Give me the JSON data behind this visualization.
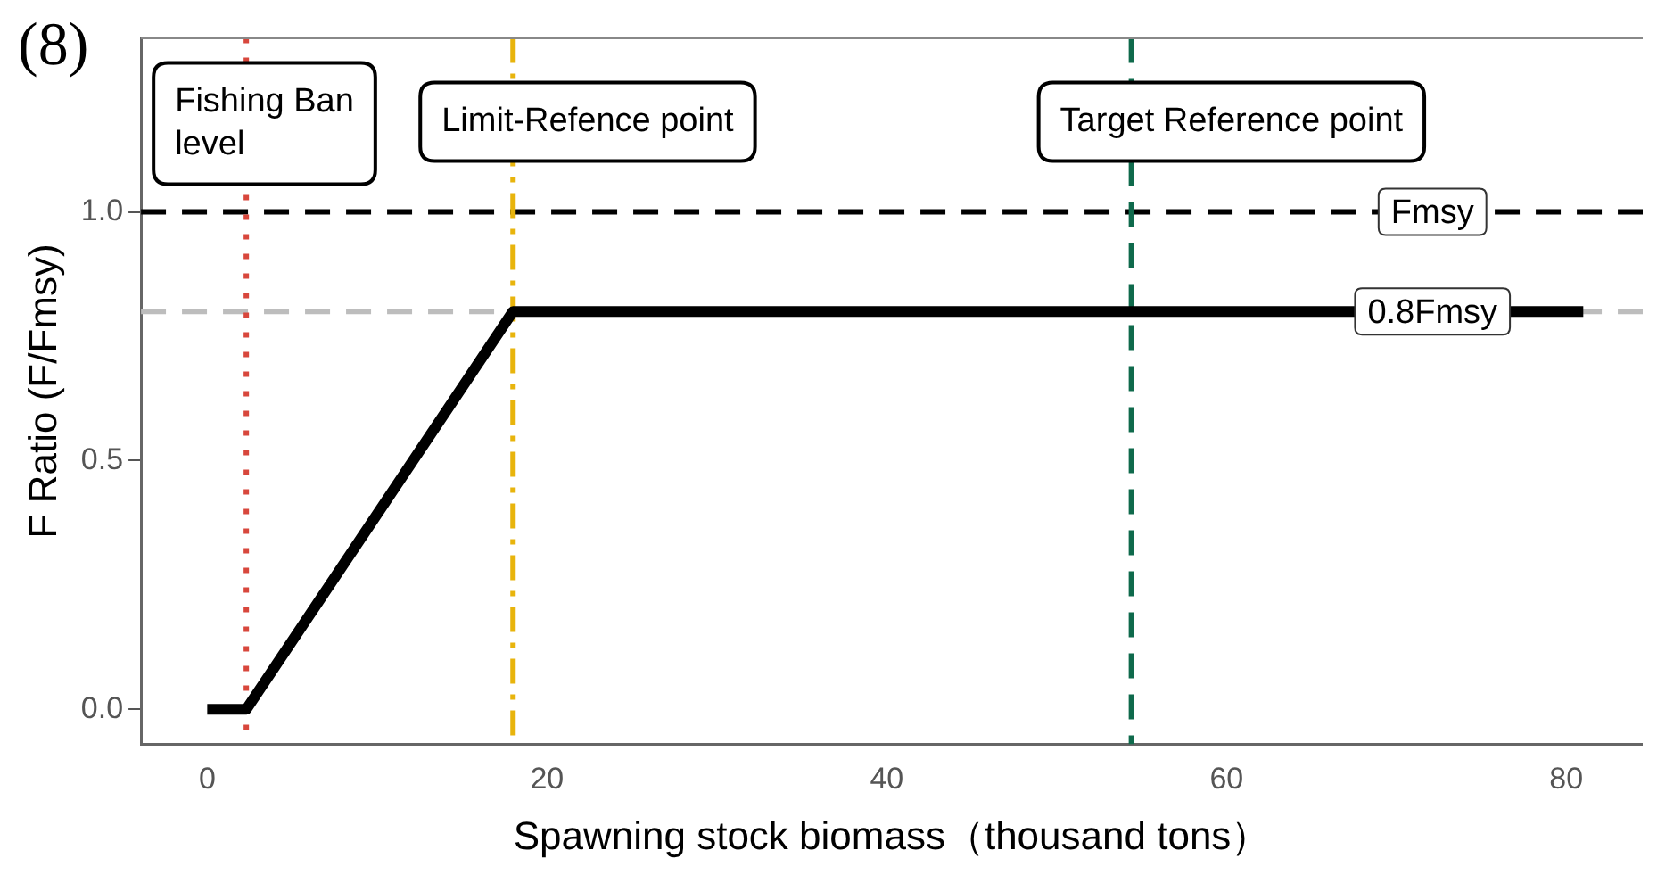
{
  "chart_data": {
    "type": "line",
    "title": "(8)",
    "xlabel": "Spawning stock biomass（thousand tons）",
    "ylabel": "F Ratio (F/Fmsy)",
    "x": [
      0,
      2.3,
      18,
      81
    ],
    "series": [
      {
        "color": "#000000",
        "values": [
          0,
          0,
          0.8,
          0.8
        ]
      }
    ],
    "xlim": [
      -3.9,
      84.5
    ],
    "ylim": [
      -0.07,
      1.35
    ],
    "xticks": [
      0,
      20,
      40,
      60,
      80
    ],
    "yticks": [
      {
        "value": 0,
        "label": "0.0"
      },
      {
        "value": 0.5,
        "label": "0.5"
      },
      {
        "value": 1,
        "label": "1.0"
      }
    ],
    "grid": false,
    "legend": false,
    "marker": "none",
    "line_style": "solid",
    "ref_lines": [
      {
        "axis": "y",
        "value": 1,
        "label": "Fmsy",
        "color": "#000000",
        "line_style": "dashed"
      },
      {
        "axis": "y",
        "value": 0.8,
        "label": "0.8Fmsy",
        "color": "#bdbdbd",
        "line_style": "dashed"
      },
      {
        "axis": "x",
        "value": 2.3,
        "label": "Fishing Ban level",
        "color": "#d8473c",
        "line_style": "dotted"
      },
      {
        "axis": "x",
        "value": 18,
        "label": "Limit-Refence point",
        "color": "#e8b40c",
        "line_style": "dashdot"
      },
      {
        "axis": "x",
        "value": 54.4,
        "label": "Target Reference point",
        "color": "#0f6a4c",
        "line_style": "dashed"
      }
    ]
  }
}
